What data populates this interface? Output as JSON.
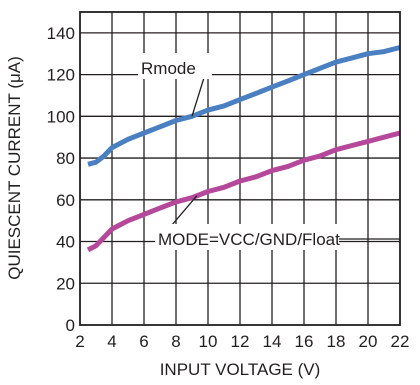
{
  "chart_data": {
    "type": "line",
    "title": "",
    "xlabel": "INPUT VOLTAGE (V)",
    "ylabel": "QUIESCENT CURRENT (μA)",
    "xlim": [
      2,
      22
    ],
    "ylim": [
      0,
      150
    ],
    "x_ticks": [
      "2",
      "4",
      "6",
      "8",
      "10",
      "12",
      "14",
      "16",
      "18",
      "20",
      "22"
    ],
    "y_ticks": [
      "0",
      "20",
      "40",
      "60",
      "80",
      "100",
      "120",
      "140"
    ],
    "grid": true,
    "series": [
      {
        "name": "Rmode",
        "color": "#4a7fc1",
        "x": [
          2.5,
          3,
          3.5,
          4,
          5,
          6,
          7,
          8,
          9,
          10,
          11,
          12,
          13,
          14,
          15,
          16,
          17,
          18,
          19,
          20,
          21,
          22
        ],
        "y": [
          77,
          78,
          81,
          85,
          89,
          92,
          95,
          98,
          100,
          103,
          105,
          108,
          111,
          114,
          117,
          120,
          123,
          126,
          128,
          130,
          131,
          133
        ]
      },
      {
        "name": "MODE=VCC/GND/Float",
        "color": "#b5489a",
        "x": [
          2.5,
          3,
          3.5,
          4,
          5,
          6,
          7,
          8,
          9,
          10,
          11,
          12,
          13,
          14,
          15,
          16,
          17,
          18,
          19,
          20,
          21,
          22
        ],
        "y": [
          36,
          38,
          42,
          46,
          50,
          53,
          56,
          59,
          61,
          64,
          66,
          69,
          71,
          74,
          76,
          79,
          81,
          84,
          86,
          88,
          90,
          92
        ]
      }
    ],
    "annotations": [
      {
        "text": "Rmode",
        "series": 0,
        "at_x": 9
      },
      {
        "text": "MODE=VCC/GND/Float",
        "series": 1,
        "at_x": 9.3
      }
    ]
  }
}
